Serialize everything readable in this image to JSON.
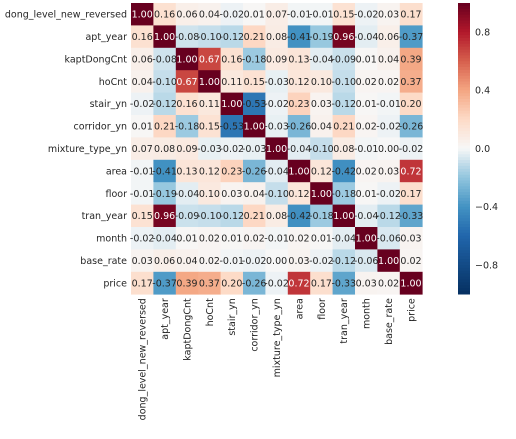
{
  "chart_data": {
    "type": "heatmap",
    "title": "",
    "variables": [
      "dong_level_new_reversed",
      "apt_year",
      "kaptDongCnt",
      "hoCnt",
      "stair_yn",
      "corridor_yn",
      "mixture_type_yn",
      "area",
      "floor",
      "tran_year",
      "month",
      "base_rate",
      "price"
    ],
    "labels": [
      [
        "1.00",
        "0.16",
        "0.06",
        "0.04",
        "-0.02",
        "0.01",
        "0.07",
        "-0.01",
        "-0.01",
        "0.15",
        "-0.02",
        "0.03",
        "0.17"
      ],
      [
        "0.16",
        "1.00",
        "-0.08",
        "-0.10",
        "-0.12",
        "0.21",
        "0.08",
        "-0.41",
        "-0.19",
        "0.96",
        "-0.04",
        "0.06",
        "-0.37"
      ],
      [
        "0.06",
        "-0.08",
        "1.00",
        "0.67",
        "0.16",
        "-0.18",
        "0.09",
        "0.13",
        "-0.04",
        "-0.09",
        "0.01",
        "0.04",
        "0.39"
      ],
      [
        "0.04",
        "-0.10",
        "0.67",
        "1.00",
        "0.11",
        "0.15",
        "-0.03",
        "0.12",
        "0.10",
        "-0.10",
        "0.02",
        "0.02",
        "0.37"
      ],
      [
        "-0.02",
        "-0.12",
        "0.16",
        "0.11",
        "1.00",
        "-0.53",
        "-0.02",
        "0.23",
        "0.03",
        "-0.12",
        "0.01",
        "-0.01",
        "0.20"
      ],
      [
        "0.01",
        "0.21",
        "-0.18",
        "0.15",
        "-0.53",
        "1.00",
        "-0.03",
        "-0.26",
        "0.04",
        "0.21",
        "0.02",
        "-0.02",
        "-0.26"
      ],
      [
        "0.07",
        "0.08",
        "0.09",
        "-0.03",
        "-0.02",
        "-0.03",
        "1.00",
        "-0.04",
        "-0.10",
        "0.08",
        "-0.01",
        "0.00",
        "-0.02"
      ],
      [
        "-0.01",
        "-0.41",
        "0.13",
        "0.12",
        "0.23",
        "-0.26",
        "-0.04",
        "1.00",
        "0.12",
        "-0.42",
        "0.02",
        "0.03",
        "0.72"
      ],
      [
        "-0.01",
        "-0.19",
        "-0.04",
        "0.10",
        "0.03",
        "0.04",
        "-0.10",
        "0.12",
        "1.00",
        "-0.18",
        "0.01",
        "-0.02",
        "0.17"
      ],
      [
        "0.15",
        "0.96",
        "-0.09",
        "-0.10",
        "-0.12",
        "0.21",
        "0.08",
        "-0.42",
        "-0.18",
        "1.00",
        "-0.04",
        "-0.12",
        "-0.33"
      ],
      [
        "-0.02",
        "-0.04",
        "0.01",
        "0.02",
        "0.01",
        "0.02",
        "-0.01",
        "0.02",
        "0.01",
        "-0.04",
        "1.00",
        "-0.06",
        "0.03"
      ],
      [
        "0.03",
        "0.06",
        "0.04",
        "0.02",
        "-0.01",
        "-0.02",
        "0.00",
        "0.03",
        "-0.02",
        "-0.12",
        "-0.06",
        "1.00",
        "0.02"
      ],
      [
        "0.17",
        "-0.37",
        "0.39",
        "0.37",
        "0.20",
        "-0.26",
        "-0.02",
        "0.72",
        "0.17",
        "-0.33",
        "0.03",
        "0.02",
        "1.00"
      ]
    ],
    "values": [
      [
        1.0,
        0.16,
        0.06,
        0.04,
        -0.02,
        0.01,
        0.07,
        -0.01,
        -0.01,
        0.15,
        -0.02,
        0.03,
        0.17
      ],
      [
        0.16,
        1.0,
        -0.08,
        -0.1,
        -0.12,
        0.21,
        0.08,
        -0.41,
        -0.19,
        0.96,
        -0.04,
        0.06,
        -0.37
      ],
      [
        0.06,
        -0.08,
        1.0,
        0.67,
        0.16,
        -0.18,
        0.09,
        0.13,
        -0.04,
        -0.09,
        0.01,
        0.04,
        0.39
      ],
      [
        0.04,
        -0.1,
        0.67,
        1.0,
        0.11,
        0.15,
        -0.03,
        0.12,
        0.1,
        -0.1,
        0.02,
        0.02,
        0.37
      ],
      [
        -0.02,
        -0.12,
        0.16,
        0.11,
        1.0,
        -0.53,
        -0.02,
        0.23,
        0.03,
        -0.12,
        0.01,
        -0.01,
        0.2
      ],
      [
        0.01,
        0.21,
        -0.18,
        0.15,
        -0.53,
        1.0,
        -0.03,
        -0.26,
        0.04,
        0.21,
        0.02,
        -0.02,
        -0.26
      ],
      [
        0.07,
        0.08,
        0.09,
        -0.03,
        -0.02,
        -0.03,
        1.0,
        -0.04,
        -0.1,
        0.08,
        -0.01,
        0.0,
        -0.02
      ],
      [
        -0.01,
        -0.41,
        0.13,
        0.12,
        0.23,
        -0.26,
        -0.04,
        1.0,
        0.12,
        -0.42,
        0.02,
        0.03,
        0.72
      ],
      [
        -0.01,
        -0.19,
        -0.04,
        0.1,
        0.03,
        0.04,
        -0.1,
        0.12,
        1.0,
        -0.18,
        0.01,
        -0.02,
        0.17
      ],
      [
        0.15,
        0.96,
        -0.09,
        -0.1,
        -0.12,
        0.21,
        0.08,
        -0.42,
        -0.18,
        1.0,
        -0.04,
        -0.12,
        -0.33
      ],
      [
        -0.02,
        -0.04,
        0.01,
        0.02,
        0.01,
        0.02,
        -0.01,
        0.02,
        0.01,
        -0.04,
        1.0,
        -0.06,
        0.03
      ],
      [
        0.03,
        0.06,
        0.04,
        0.02,
        -0.01,
        -0.02,
        0.0,
        0.03,
        -0.02,
        -0.12,
        -0.06,
        1.0,
        0.02
      ],
      [
        0.17,
        -0.37,
        0.39,
        0.37,
        0.2,
        -0.26,
        -0.02,
        0.72,
        0.17,
        -0.33,
        0.03,
        0.02,
        1.0
      ]
    ],
    "colorbar": {
      "range": [
        -1.0,
        1.0
      ],
      "ticks": [
        -0.8,
        -0.4,
        0.0,
        0.4,
        0.8
      ],
      "tick_labels": [
        "−0.8",
        "−0.4",
        "0.0",
        "0.4",
        "0.8"
      ]
    },
    "colormap": "RdBu_r",
    "colors": {
      "negative_end": "#053061",
      "negative_mid": "#4393c3",
      "neutral": "#f7f7f7",
      "positive_mid": "#f4a582",
      "positive_end": "#67001f"
    },
    "annotations": true,
    "grid": false
  }
}
